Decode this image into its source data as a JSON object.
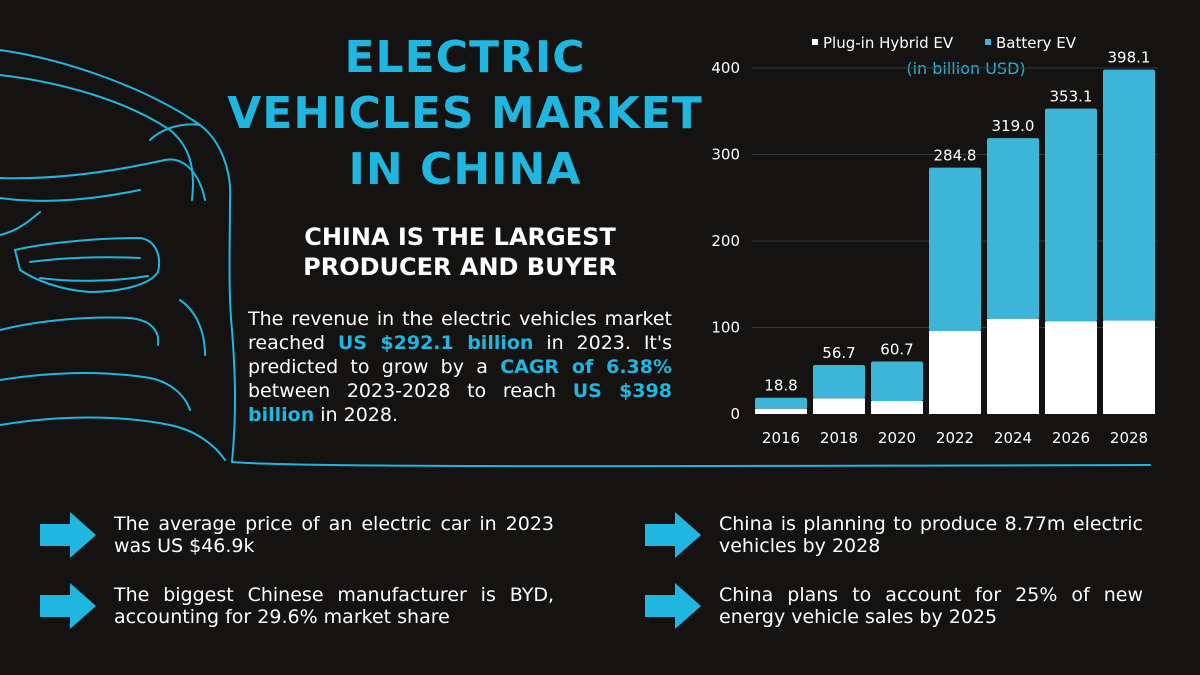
{
  "title_lines": [
    "ELECTRIC",
    "VEHICLES MARKET",
    "IN CHINA"
  ],
  "subtitle_lines": [
    "CHINA IS THE LARGEST",
    "PRODUCER AND BUYER"
  ],
  "paragraph": {
    "t1": "The revenue in the electric vehicles market reached ",
    "h1": "US $292.1 billion",
    "t2": " in 2023. It's predicted to grow by a ",
    "h2": "CAGR of 6.38%",
    "t3": " between 2023-2028 to reach ",
    "h3": "US $398 billion",
    "t4": " in 2028."
  },
  "facts": [
    "The average price of an electric car in 2023 was US $46.9k",
    "The biggest Chinese manufacturer is BYD, accounting for 29.6% market share",
    "China is planning to produce 8.77m electric vehicles by 2028",
    "China plans to account for 25% of new energy vehicle sales by 2025"
  ],
  "colors": {
    "accent": "#1fb6e0",
    "bg": "#141312",
    "bev": "#3db5d8",
    "phev": "#ffffff"
  },
  "chart_data": {
    "type": "bar",
    "stacked": true,
    "title": "",
    "unit_note": "(in billion USD)",
    "categories": [
      "2016",
      "2018",
      "2020",
      "2022",
      "2024",
      "2026",
      "2028"
    ],
    "series": [
      {
        "name": "Plug-in Hybrid EV",
        "values": [
          6,
          18,
          15,
          96,
          110,
          107,
          108
        ]
      },
      {
        "name": "Battery EV",
        "values": [
          12.8,
          38.7,
          45.7,
          188.8,
          209.0,
          246.1,
          290.1
        ]
      }
    ],
    "totals": [
      "18.8",
      "56.7",
      "60.7",
      "284.8",
      "319.0",
      "353.1",
      "398.1"
    ],
    "yticks": [
      0,
      100,
      200,
      300,
      400
    ],
    "ylim": [
      0,
      400
    ],
    "legend_position": "top",
    "grid": true
  }
}
